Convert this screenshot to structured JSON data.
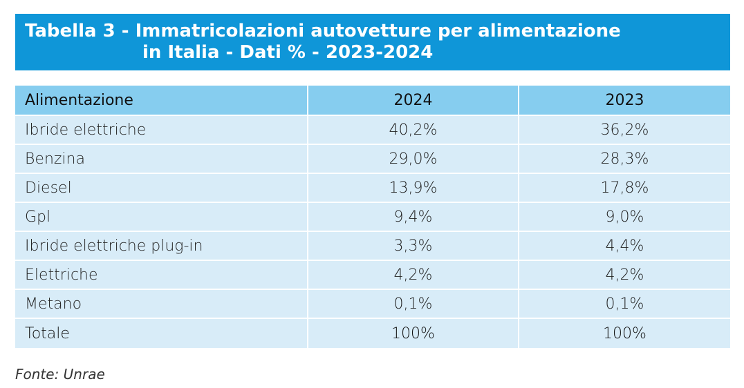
{
  "title": {
    "line1": "Tabella 3 - Immatricolazioni autovetture per alimentazione",
    "line2": "in Italia - Dati % - 2023-2024"
  },
  "table": {
    "headers": [
      "Alimentazione",
      "2024",
      "2023"
    ],
    "rows": [
      {
        "label": "Ibride elettriche",
        "v2024": "40,2%",
        "v2023": "36,2%"
      },
      {
        "label": "Benzina",
        "v2024": "29,0%",
        "v2023": "28,3%"
      },
      {
        "label": "Diesel",
        "v2024": "13,9%",
        "v2023": "17,8%"
      },
      {
        "label": "Gpl",
        "v2024": "9,4%",
        "v2023": "9,0%"
      },
      {
        "label": "Ibride elettriche plug-in",
        "v2024": "3,3%",
        "v2023": "4,4%"
      },
      {
        "label": "Elettriche",
        "v2024": "4,2%",
        "v2023": "4,2%"
      },
      {
        "label": "Metano",
        "v2024": "0,1%",
        "v2023": "0,1%"
      }
    ],
    "total": {
      "label": "Totale",
      "v2024": "100%",
      "v2023": "100%"
    }
  },
  "source": "Fonte: Unrae",
  "colors": {
    "title_background": "#0f96d8",
    "header_background": "#86cdef",
    "row_background": "#d8ecf8"
  }
}
